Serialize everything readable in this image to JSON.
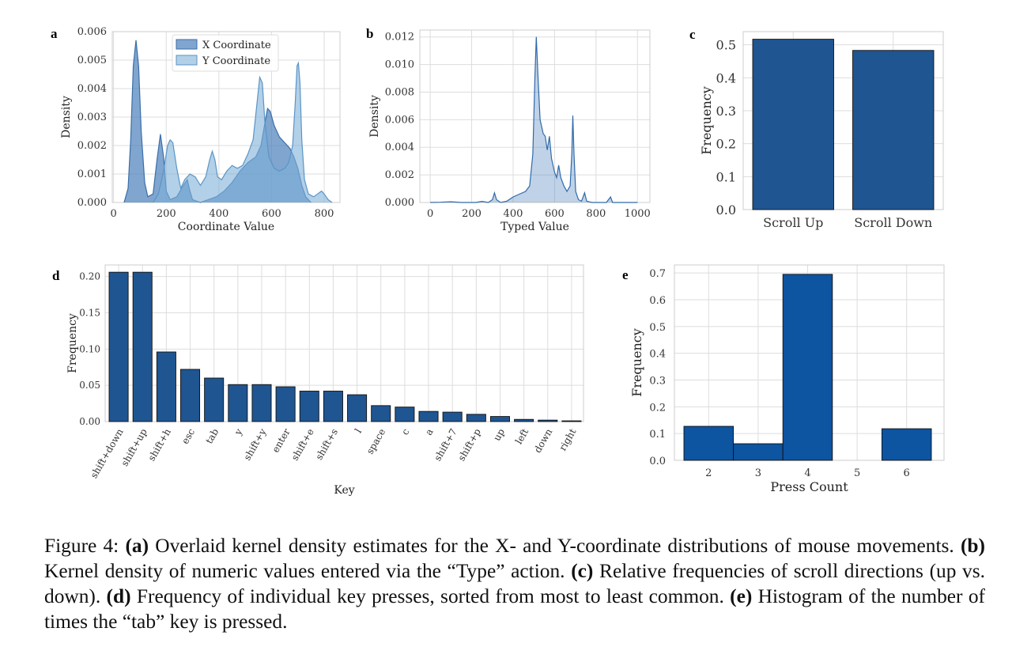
{
  "chart_data": [
    {
      "panel": "a",
      "type": "area",
      "xlabel": "Coordinate Value",
      "ylabel": "Density",
      "xlim": [
        -5,
        860
      ],
      "ylim": [
        0,
        0.006
      ],
      "xticks": [
        "0",
        "200",
        "400",
        "600",
        "800"
      ],
      "yticks": [
        "0.000",
        "0.001",
        "0.002",
        "0.003",
        "0.004",
        "0.005",
        "0.006"
      ],
      "legend_placement": "top-center",
      "grid": true,
      "series": [
        {
          "name": "X Coordinate",
          "color": "#4a7fba",
          "points": [
            [
              40,
              0.0
            ],
            [
              55,
              0.0005
            ],
            [
              65,
              0.0022
            ],
            [
              75,
              0.0048
            ],
            [
              85,
              0.0057
            ],
            [
              95,
              0.0048
            ],
            [
              105,
              0.0025
            ],
            [
              118,
              0.0007
            ],
            [
              130,
              0.0002
            ],
            [
              150,
              0.0003
            ],
            [
              165,
              0.0015
            ],
            [
              178,
              0.0024
            ],
            [
              190,
              0.0016
            ],
            [
              200,
              0.0004
            ],
            [
              215,
              0.0001
            ],
            [
              240,
              0.0002
            ],
            [
              265,
              0.0006
            ],
            [
              280,
              0.0008
            ],
            [
              290,
              0.0004
            ],
            [
              300,
              0.0001
            ],
            [
              330,
              0.0
            ],
            [
              360,
              0.0001
            ],
            [
              390,
              0.0002
            ],
            [
              420,
              0.0004
            ],
            [
              450,
              0.0007
            ],
            [
              480,
              0.0011
            ],
            [
              510,
              0.0014
            ],
            [
              540,
              0.0016
            ],
            [
              560,
              0.002
            ],
            [
              575,
              0.0028
            ],
            [
              585,
              0.0033
            ],
            [
              595,
              0.0032
            ],
            [
              610,
              0.0027
            ],
            [
              630,
              0.0023
            ],
            [
              650,
              0.0021
            ],
            [
              670,
              0.0019
            ],
            [
              685,
              0.0016
            ],
            [
              700,
              0.0012
            ],
            [
              715,
              0.0006
            ],
            [
              730,
              0.0002
            ],
            [
              750,
              0.0
            ]
          ]
        },
        {
          "name": "Y Coordinate",
          "color": "#7fb0d8",
          "points": [
            [
              150,
              0.0
            ],
            [
              170,
              0.0003
            ],
            [
              190,
              0.0011
            ],
            [
              205,
              0.002
            ],
            [
              215,
              0.0022
            ],
            [
              225,
              0.0021
            ],
            [
              240,
              0.0012
            ],
            [
              255,
              0.0005
            ],
            [
              270,
              0.0008
            ],
            [
              290,
              0.001
            ],
            [
              310,
              0.0009
            ],
            [
              330,
              0.0006
            ],
            [
              350,
              0.0009
            ],
            [
              365,
              0.0015
            ],
            [
              375,
              0.0018
            ],
            [
              385,
              0.0015
            ],
            [
              395,
              0.0009
            ],
            [
              410,
              0.0008
            ],
            [
              430,
              0.0011
            ],
            [
              450,
              0.0013
            ],
            [
              470,
              0.0012
            ],
            [
              490,
              0.0013
            ],
            [
              510,
              0.0017
            ],
            [
              530,
              0.0022
            ],
            [
              545,
              0.0035
            ],
            [
              555,
              0.0044
            ],
            [
              565,
              0.0042
            ],
            [
              575,
              0.0028
            ],
            [
              590,
              0.0016
            ],
            [
              610,
              0.0012
            ],
            [
              630,
              0.0011
            ],
            [
              650,
              0.0012
            ],
            [
              665,
              0.0014
            ],
            [
              680,
              0.002
            ],
            [
              690,
              0.0035
            ],
            [
              697,
              0.0048
            ],
            [
              702,
              0.0049
            ],
            [
              708,
              0.0042
            ],
            [
              715,
              0.0022
            ],
            [
              725,
              0.0008
            ],
            [
              740,
              0.0003
            ],
            [
              760,
              0.0002
            ],
            [
              775,
              0.0003
            ],
            [
              790,
              0.0004
            ],
            [
              800,
              0.0003
            ],
            [
              815,
              0.0001
            ],
            [
              830,
              0.0
            ]
          ]
        }
      ]
    },
    {
      "panel": "b",
      "type": "area",
      "xlabel": "Typed Value",
      "ylabel": "Density",
      "xlim": [
        -50,
        1060
      ],
      "ylim": [
        0,
        0.0125
      ],
      "xticks": [
        "0",
        "200",
        "400",
        "600",
        "800",
        "1000"
      ],
      "yticks": [
        "0.000",
        "0.002",
        "0.004",
        "0.006",
        "0.008",
        "0.010",
        "0.012"
      ],
      "grid": true,
      "series": [
        {
          "color": "#4a7fba",
          "points": [
            [
              0,
              0.0
            ],
            [
              50,
              2e-05
            ],
            [
              100,
              5e-05
            ],
            [
              150,
              0.0
            ],
            [
              220,
              0.0
            ],
            [
              250,
              8e-05
            ],
            [
              280,
              0.0
            ],
            [
              300,
              0.0002
            ],
            [
              310,
              0.0007
            ],
            [
              320,
              0.0002
            ],
            [
              340,
              0.0
            ],
            [
              370,
              0.0001
            ],
            [
              400,
              0.0004
            ],
            [
              430,
              0.0006
            ],
            [
              460,
              0.0008
            ],
            [
              480,
              0.0012
            ],
            [
              495,
              0.0035
            ],
            [
              505,
              0.009
            ],
            [
              512,
              0.012
            ],
            [
              520,
              0.0092
            ],
            [
              530,
              0.006
            ],
            [
              545,
              0.005
            ],
            [
              555,
              0.0048
            ],
            [
              565,
              0.0038
            ],
            [
              575,
              0.0048
            ],
            [
              585,
              0.0032
            ],
            [
              600,
              0.0022
            ],
            [
              610,
              0.0018
            ],
            [
              620,
              0.0027
            ],
            [
              630,
              0.0018
            ],
            [
              645,
              0.0012
            ],
            [
              660,
              0.0008
            ],
            [
              675,
              0.0012
            ],
            [
              683,
              0.0035
            ],
            [
              688,
              0.0063
            ],
            [
              694,
              0.0035
            ],
            [
              702,
              0.0008
            ],
            [
              715,
              0.0002
            ],
            [
              730,
              0.0001
            ],
            [
              745,
              0.0007
            ],
            [
              755,
              0.0001
            ],
            [
              780,
              0.0
            ],
            [
              850,
              0.0
            ],
            [
              870,
              0.0004
            ],
            [
              880,
              0.0
            ],
            [
              1000,
              0.0
            ]
          ]
        }
      ]
    },
    {
      "panel": "c",
      "type": "bar",
      "ylabel": "Frequency",
      "categories": [
        "Scroll Up",
        "Scroll Down"
      ],
      "values": [
        0.517,
        0.483
      ],
      "ylim": [
        0,
        0.54
      ],
      "yticks": [
        "0.0",
        "0.1",
        "0.2",
        "0.3",
        "0.4",
        "0.5"
      ],
      "color": "#1f5591",
      "grid": true
    },
    {
      "panel": "d",
      "type": "bar",
      "xlabel": "Key",
      "ylabel": "Frequency",
      "categories": [
        "shift+down",
        "shift+up",
        "shift+h",
        "esc",
        "tab",
        "y",
        "shift+y",
        "enter",
        "shift+e",
        "shift+s",
        "l",
        "space",
        "c",
        "a",
        "shift+7",
        "shift+p",
        "up",
        "left",
        "down",
        "right"
      ],
      "values": [
        0.206,
        0.206,
        0.096,
        0.072,
        0.06,
        0.051,
        0.051,
        0.048,
        0.042,
        0.042,
        0.037,
        0.022,
        0.02,
        0.014,
        0.013,
        0.01,
        0.007,
        0.003,
        0.002,
        0.001
      ],
      "ylim": [
        0,
        0.216
      ],
      "yticks": [
        "0.00",
        "0.05",
        "0.10",
        "0.15",
        "0.20"
      ],
      "color": "#1f5591",
      "grid": true
    },
    {
      "panel": "e",
      "type": "bar",
      "xlabel": "Press Count",
      "ylabel": "Frequency",
      "categories": [
        "2",
        "3",
        "4",
        "5",
        "6"
      ],
      "values": [
        0.127,
        0.062,
        0.695,
        0.0,
        0.118
      ],
      "ylim": [
        0,
        0.73
      ],
      "yticks": [
        "0.0",
        "0.1",
        "0.2",
        "0.3",
        "0.4",
        "0.5",
        "0.6",
        "0.7"
      ],
      "color": "#0d54a1",
      "grid": true
    }
  ],
  "caption": {
    "figure_label": "Figure 4:",
    "a_label": "(a)",
    "a_text": "Overlaid kernel density estimates for the X- and Y-coordinate distributions of mouse movements.",
    "b_label": "(b)",
    "b_text": "Kernel density of numeric values entered via the “Type” action.",
    "c_label": "(c)",
    "c_text": "Relative frequencies of scroll directions (up vs. down).",
    "d_label": "(d)",
    "d_text": "Frequency of individual key presses, sorted from most to least common.",
    "e_label": "(e)",
    "e_text": "Histogram of the number of times the “tab” key is pressed."
  }
}
